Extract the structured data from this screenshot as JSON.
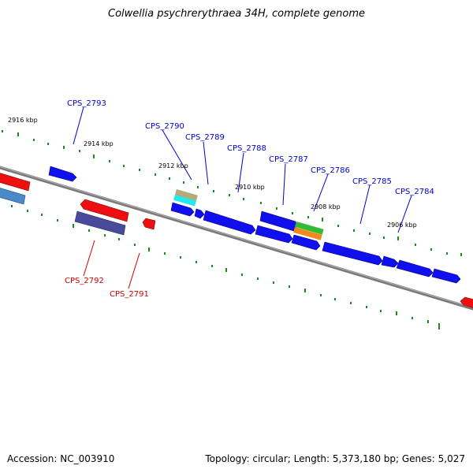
{
  "title": "Colwellia psychrerythraea 34H, complete genome",
  "footer": {
    "accession": "Accession: NC_003910",
    "summary": "Topology: circular; Length: 5,373,180 bp; Genes: 5,027"
  },
  "colors": {
    "backbone": "#7a7a7a",
    "forward_gene": "#0000ee",
    "reverse_gene": "#ee0000",
    "label_forward": "#0000cc",
    "label_reverse": "#cc0000",
    "tick": "#1e8a1e"
  },
  "ruler_labels": [
    "2916 kbp",
    "2914 kbp",
    "2912 kbp",
    "2910 kbp",
    "2908 kbp",
    "2906 kbp"
  ],
  "forward_labels": [
    "CPS_2793",
    "CPS_2790",
    "CPS_2789",
    "CPS_2788",
    "CPS_2787",
    "CPS_2786",
    "CPS_2785",
    "CPS_2784"
  ],
  "reverse_labels": [
    "CPS_2792",
    "CPS_2791"
  ]
}
